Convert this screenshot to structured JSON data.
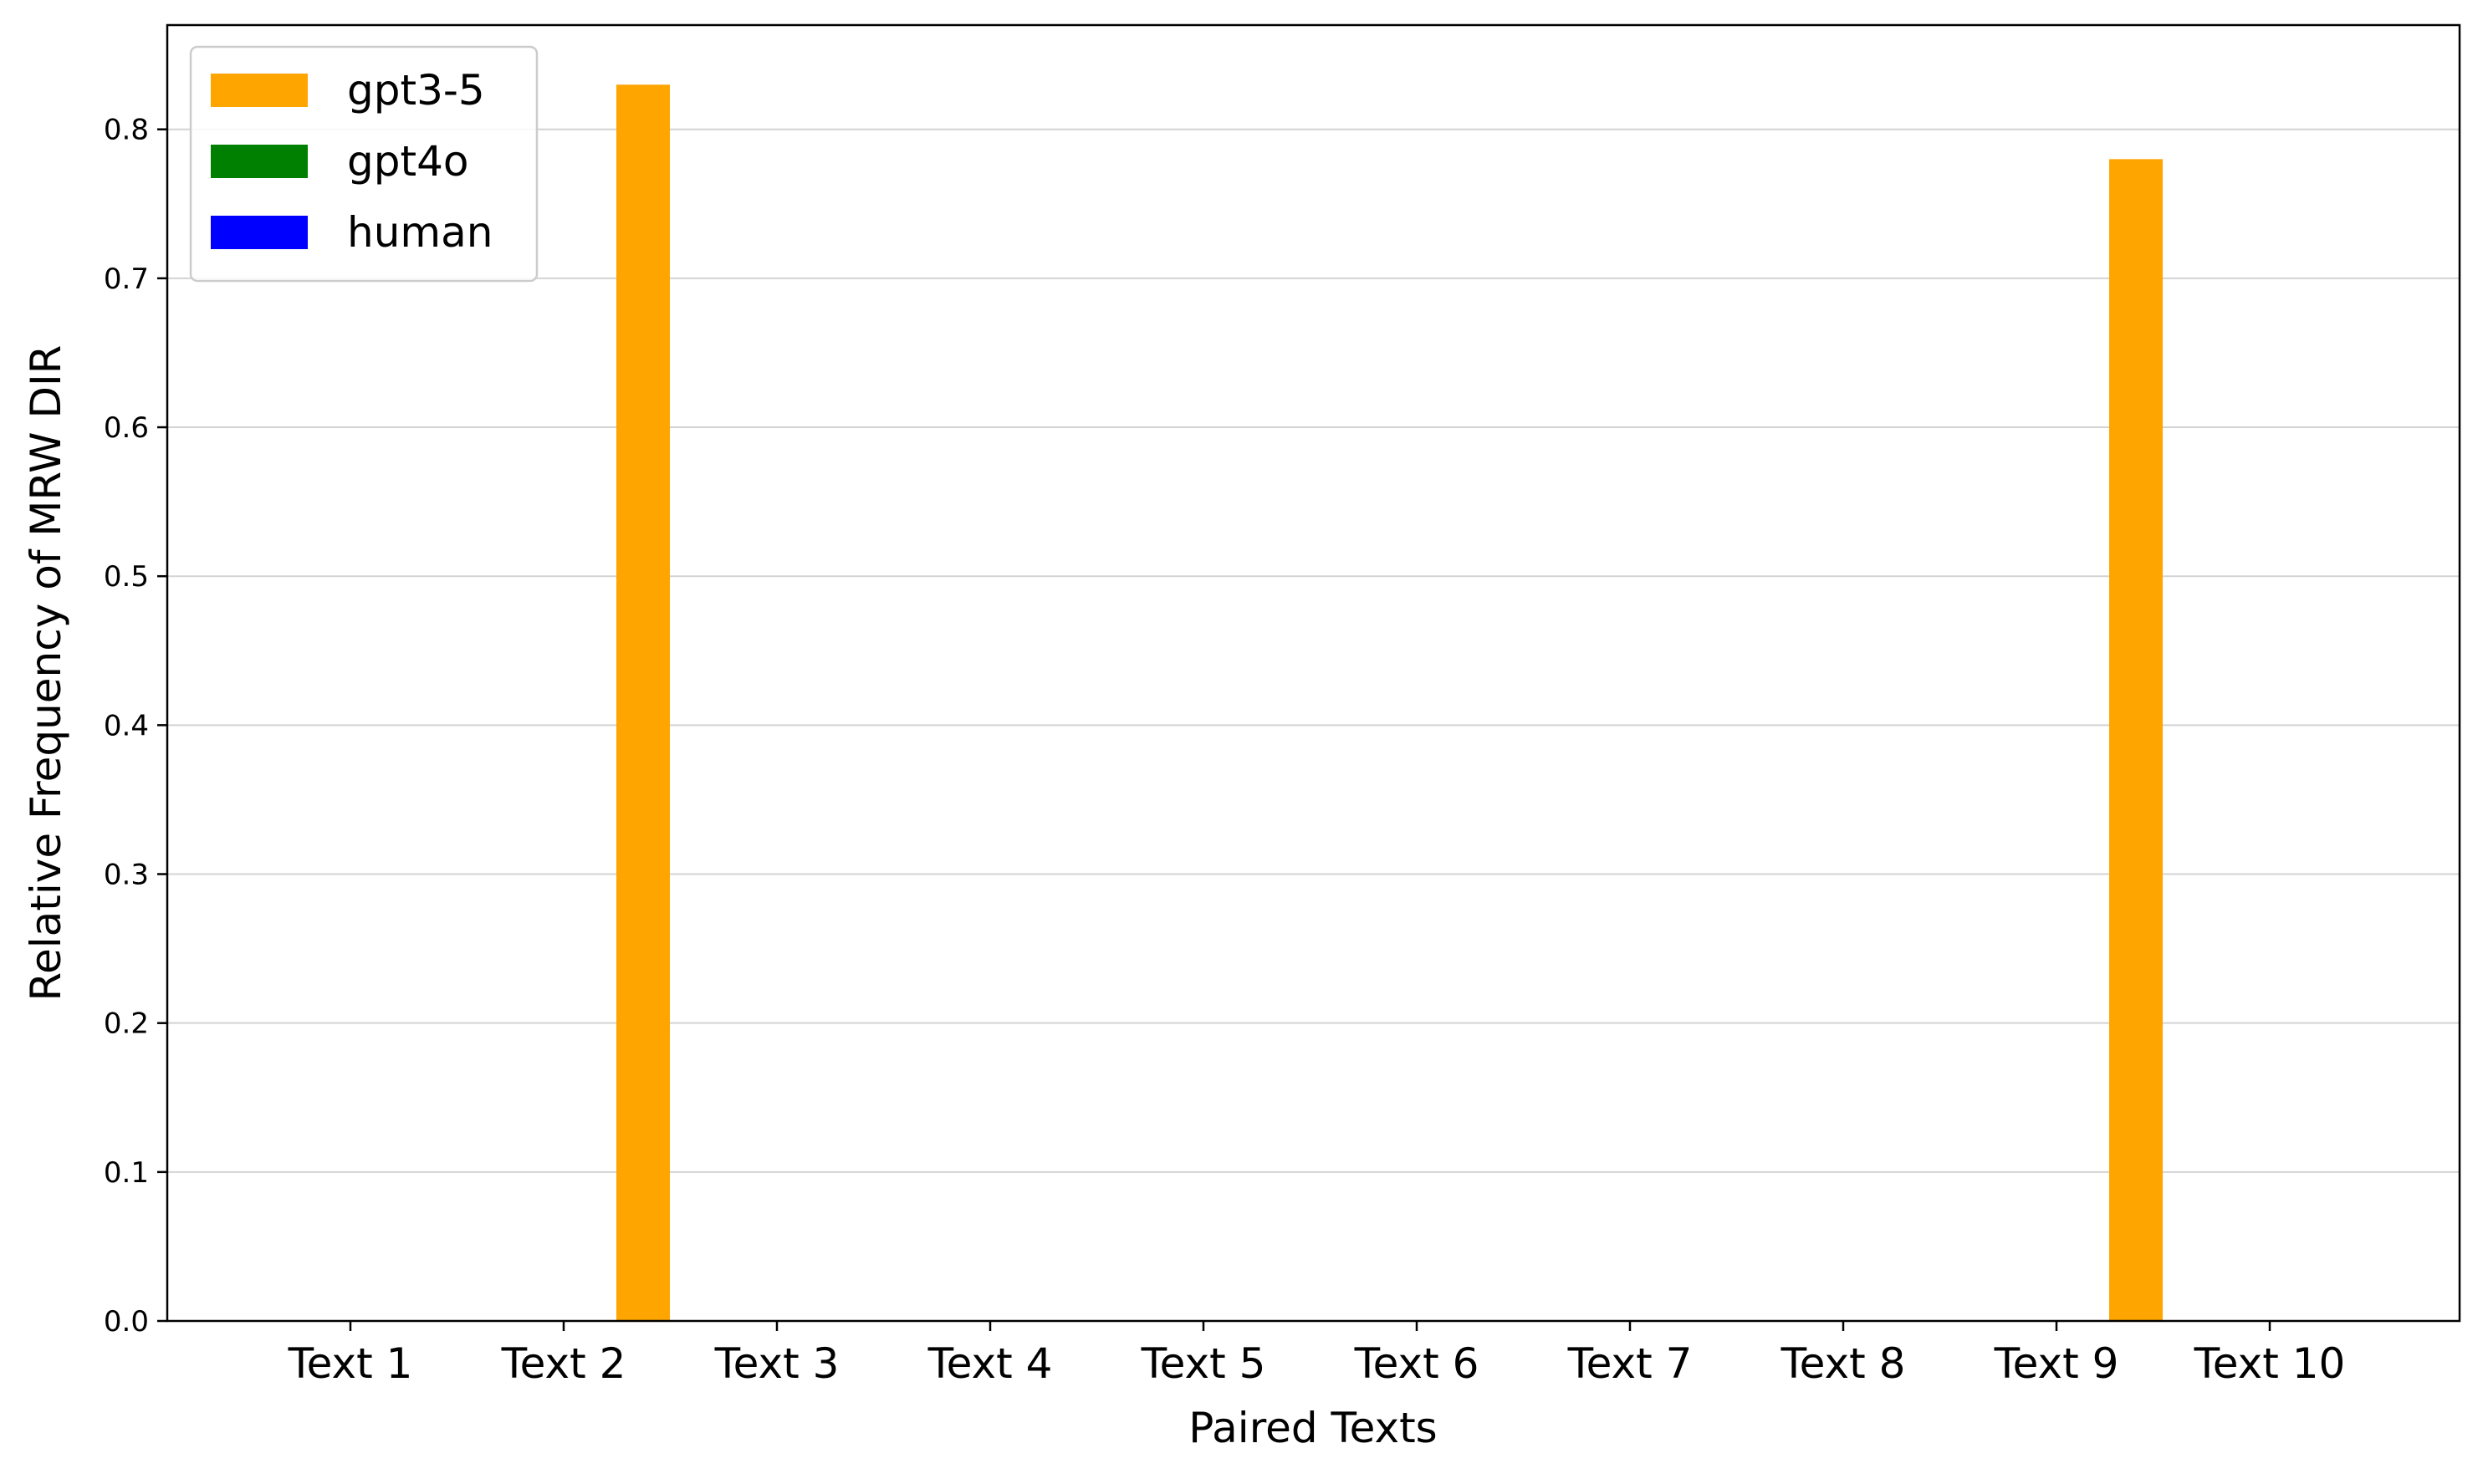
{
  "chart_data": {
    "type": "bar",
    "title": "",
    "xlabel": "Paired Texts",
    "ylabel": "Relative Frequency of MRW DIR",
    "categories": [
      "Text 1",
      "Text 2",
      "Text 3",
      "Text 4",
      "Text 5",
      "Text 6",
      "Text 7",
      "Text 8",
      "Text 9",
      "Text 10"
    ],
    "series": [
      {
        "name": "gpt3-5",
        "color": "#FFA500",
        "values": [
          0,
          0,
          0.83,
          0,
          0,
          0,
          0,
          0,
          0,
          0.78
        ]
      },
      {
        "name": "gpt4o",
        "color": "#008000",
        "values": [
          0,
          0,
          0,
          0,
          0,
          0,
          0,
          0,
          0,
          0
        ]
      },
      {
        "name": "human",
        "color": "#0000FF",
        "values": [
          0,
          0,
          0,
          0,
          0,
          0,
          0,
          0,
          0,
          0
        ]
      }
    ],
    "ylim": [
      0,
      0.87
    ],
    "yticks": [
      0.0,
      0.1,
      0.2,
      0.3,
      0.4,
      0.5,
      0.6,
      0.7,
      0.8
    ],
    "ytick_labels": [
      "0.0",
      "0.1",
      "0.2",
      "0.3",
      "0.4",
      "0.5",
      "0.6",
      "0.7",
      "0.8"
    ],
    "grid": "horizontal",
    "legend_position": "top-left"
  }
}
